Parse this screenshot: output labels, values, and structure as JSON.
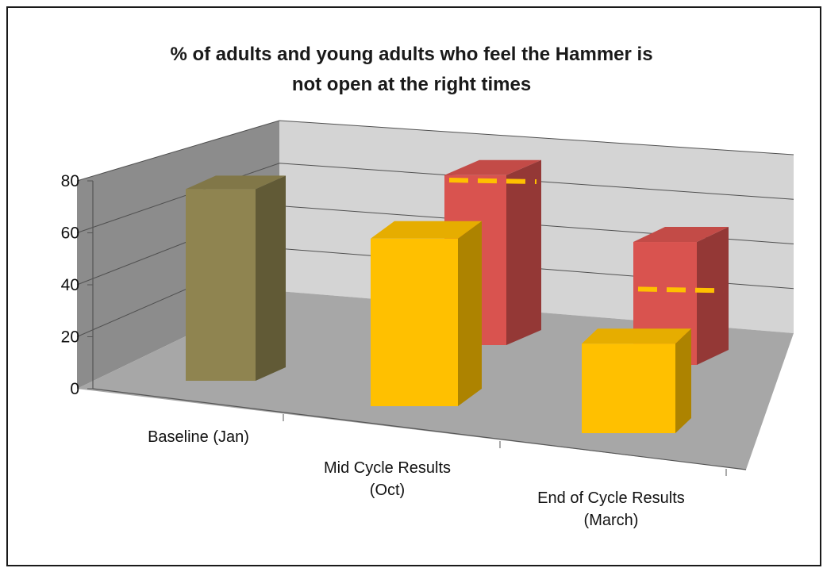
{
  "chart_data": {
    "type": "bar",
    "title_lines": [
      "% of adults and young adults who feel the Hammer is",
      "not open at the right times"
    ],
    "categories": [
      [
        "Baseline (Jan)"
      ],
      [
        "Mid Cycle Results",
        "(Oct)"
      ],
      [
        "End of Cycle Results",
        "(March)"
      ]
    ],
    "yticks": [
      "0",
      "20",
      "40",
      "60",
      "80"
    ],
    "ylim": [
      0,
      80
    ],
    "grid": true,
    "series": [
      {
        "values": [
          73,
          64,
          40
        ],
        "colors": [
          "#8f8450",
          "#ffc000",
          "#ffc000"
        ]
      },
      {
        "values": [
          null,
          68,
          54
        ],
        "colors": [
          "#d9534f",
          "#d9534f",
          "#d9534f"
        ],
        "markers": [
          null,
          63,
          30
        ]
      }
    ]
  }
}
